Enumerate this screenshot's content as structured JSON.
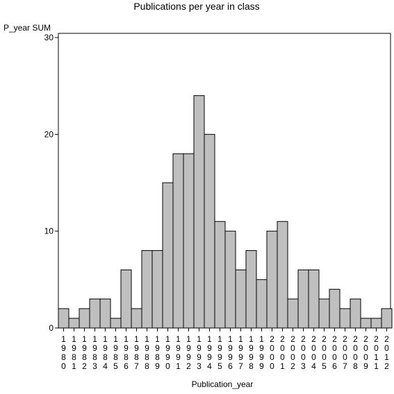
{
  "chart_data": {
    "type": "bar",
    "title": "Publications per year in class",
    "ylabel": "P_year SUM",
    "xlabel": "Publication_year",
    "ylim": [
      0,
      30
    ],
    "yticks": [
      0,
      10,
      20,
      30
    ],
    "grid": false,
    "bar_color": "#bfbfbf",
    "categories": [
      "1980",
      "1981",
      "1982",
      "1983",
      "1984",
      "1985",
      "1986",
      "1987",
      "1988",
      "1989",
      "1990",
      "1991",
      "1992",
      "1993",
      "1994",
      "1995",
      "1996",
      "1997",
      "1998",
      "1999",
      "2000",
      "2001",
      "2002",
      "2003",
      "2004",
      "2005",
      "2006",
      "2007",
      "2008",
      "2009",
      "2011",
      "2012"
    ],
    "values": [
      2,
      1,
      2,
      3,
      3,
      1,
      6,
      2,
      8,
      8,
      15,
      18,
      18,
      24,
      20,
      11,
      10,
      6,
      8,
      5,
      10,
      11,
      3,
      6,
      6,
      3,
      4,
      2,
      3,
      1,
      1,
      2
    ]
  }
}
